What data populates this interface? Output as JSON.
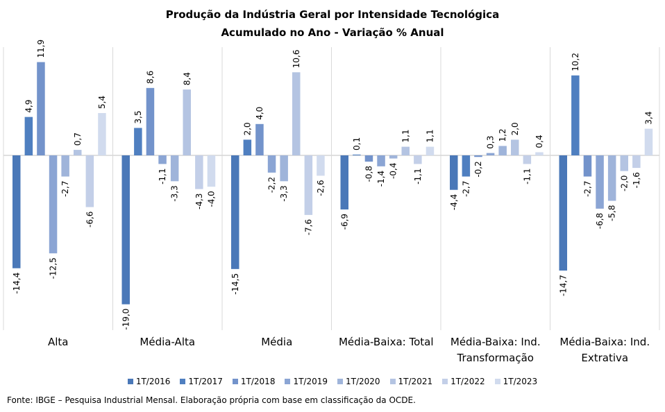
{
  "chart_data": {
    "type": "bar",
    "title": "Produção da Indústria Geral por Intensidade Tecnológica",
    "subtitle": "Acumulado no Ano - Variação % Anual",
    "categories": [
      [
        "Alta"
      ],
      [
        "Média-Alta"
      ],
      [
        "Média"
      ],
      [
        "Média-Baixa: Total"
      ],
      [
        "Média-Baixa: Ind.",
        "Transformação"
      ],
      [
        "Média-Baixa: Ind.",
        "Extrativa"
      ]
    ],
    "series": [
      {
        "name": "1T/2016",
        "color": "#4a78b8",
        "values": [
          -14.4,
          -19.0,
          -14.5,
          -6.9,
          -4.4,
          -14.7
        ],
        "labels": [
          "-14,4",
          "-19,0",
          "-14,5",
          "-6,9",
          "-4,4",
          "-14,7"
        ]
      },
      {
        "name": "1T/2017",
        "color": "#4f7fc0",
        "values": [
          4.9,
          3.5,
          2.0,
          0.1,
          -2.7,
          10.2
        ],
        "labels": [
          "4,9",
          "3,5",
          "2,0",
          "0,1",
          "-2,7",
          "10,2"
        ]
      },
      {
        "name": "1T/2018",
        "color": "#7393cb",
        "values": [
          11.9,
          8.6,
          4.0,
          -0.8,
          -0.2,
          -2.7
        ],
        "labels": [
          "11,9",
          "8,6",
          "4,0",
          "-0,8",
          "-0,2",
          "-2,7"
        ]
      },
      {
        "name": "1T/2019",
        "color": "#8ba5d4",
        "values": [
          -12.5,
          -1.1,
          -2.2,
          -1.4,
          0.3,
          -6.8
        ],
        "labels": [
          "-12,5",
          "-1,1",
          "-2,2",
          "-1,4",
          "0,3",
          "-6,8"
        ]
      },
      {
        "name": "1T/2020",
        "color": "#9fb4da",
        "values": [
          -2.7,
          -3.3,
          -3.3,
          -0.4,
          1.2,
          -5.8
        ],
        "labels": [
          "-2,7",
          "-3,3",
          "-3,3",
          "-0,4",
          "1,2",
          "-5,8"
        ]
      },
      {
        "name": "1T/2021",
        "color": "#b4c4e2",
        "values": [
          0.7,
          8.4,
          10.6,
          1.1,
          2.0,
          -2.0
        ],
        "labels": [
          "0,7",
          "8,4",
          "10,6",
          "1,1",
          "2,0",
          "-2,0"
        ]
      },
      {
        "name": "1T/2022",
        "color": "#c3cfe8",
        "values": [
          -6.6,
          -4.3,
          -7.6,
          -1.1,
          -1.1,
          -1.6
        ],
        "labels": [
          "-6,6",
          "-4,3",
          "-7,6",
          "-1,1",
          "-1,1",
          "-1,6"
        ]
      },
      {
        "name": "1T/2023",
        "color": "#d1dbee",
        "values": [
          5.4,
          -4.0,
          -2.6,
          1.1,
          0.4,
          3.4
        ],
        "labels": [
          "5,4",
          "-4,0",
          "-2,6",
          "1,1",
          "0,4",
          "3,4"
        ]
      }
    ],
    "ylim": [
      -20,
      13.5
    ],
    "legend_position": "bottom",
    "grid": false
  },
  "source": "Fonte: IBGE – Pesquisa Industrial Mensal. Elaboração própria com base em classificação da OCDE."
}
